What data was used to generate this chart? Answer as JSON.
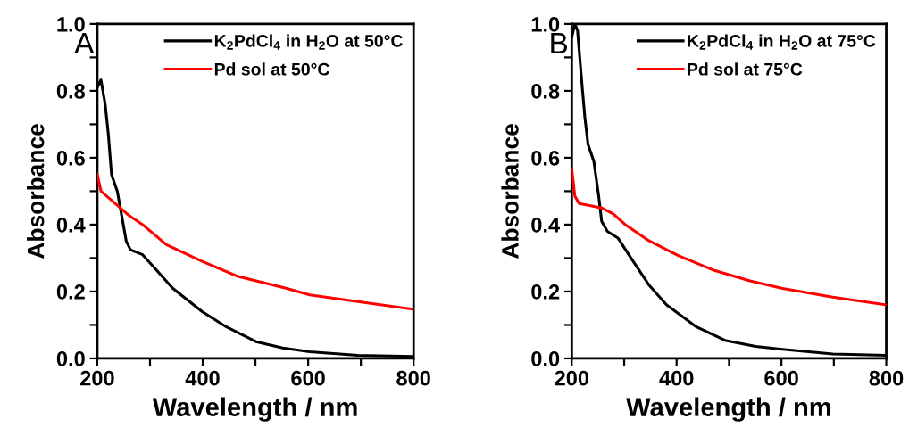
{
  "chart_data": [
    {
      "type": "line",
      "xlabel": "Wavelength / nm",
      "ylabel": "Absorbance",
      "annotations": [
        "A"
      ],
      "xlim": [
        200,
        800
      ],
      "ylim": [
        0,
        1.0
      ],
      "xticks": [
        200,
        {
          "value": 300,
          "label": null
        },
        400,
        {
          "value": 500,
          "label": null
        },
        600,
        {
          "value": 700,
          "label": null
        },
        800
      ],
      "yticks": [
        "0.0",
        {
          "value": 0.1,
          "label": null
        },
        0.2,
        {
          "value": 0.3,
          "label": null
        },
        0.4,
        {
          "value": 0.5,
          "label": null
        },
        0.6,
        {
          "value": 0.7,
          "label": null
        },
        0.8,
        {
          "value": 0.9,
          "label": null
        },
        "1.0"
      ],
      "grid": false,
      "legend": "top right",
      "marker": "none",
      "line_style": "solid",
      "series": [
        {
          "name": "K$_{2}$PdCl$_{4}$ in H$_{2}$O at 50°C",
          "color": "#000000",
          "x": [
            200,
            207,
            215,
            221,
            227,
            238,
            246,
            255,
            263,
            286,
            309,
            343,
            399,
            445,
            501,
            552,
            603,
            694,
            800
          ],
          "values": [
            0.81,
            0.833,
            0.76,
            0.67,
            0.55,
            0.5,
            0.43,
            0.35,
            0.325,
            0.31,
            0.27,
            0.21,
            0.14,
            0.094,
            0.05,
            0.031,
            0.02,
            0.009,
            0.006
          ]
        },
        {
          "name": "Pd sol at 50°C",
          "color": "#ff0000",
          "x": [
            200,
            207,
            229,
            258,
            286,
            331,
            399,
            467,
            558,
            603,
            694,
            800
          ],
          "values": [
            0.55,
            0.5,
            0.47,
            0.43,
            0.4,
            0.34,
            0.29,
            0.245,
            0.21,
            0.19,
            0.17,
            0.147
          ]
        }
      ]
    },
    {
      "type": "line",
      "xlabel": "Wavelength / nm",
      "ylabel": "Absorbance",
      "annotations": [
        "B"
      ],
      "xlim": [
        200,
        800
      ],
      "ylim": [
        0,
        1.0
      ],
      "xticks": [
        200,
        {
          "value": 300,
          "label": null
        },
        400,
        {
          "value": 500,
          "label": null
        },
        600,
        {
          "value": 700,
          "label": null
        },
        800
      ],
      "yticks": [
        "0.0",
        {
          "value": 0.1,
          "label": null
        },
        0.2,
        {
          "value": 0.3,
          "label": null
        },
        0.4,
        {
          "value": 0.5,
          "label": null
        },
        0.6,
        {
          "value": 0.7,
          "label": null
        },
        0.8,
        {
          "value": 0.9,
          "label": null
        },
        "1.0"
      ],
      "grid": false,
      "legend": "top right",
      "marker": "none",
      "line_style": "solid",
      "series": [
        {
          "name": "K$_{2}$PdCl$_{4}$ in H$_{2}$O at 75°C",
          "color": "#000000",
          "x": [
            200,
            206,
            211,
            220,
            225,
            231,
            242,
            251,
            257,
            268,
            288,
            313,
            347,
            381,
            438,
            494,
            551,
            602,
            698,
            800
          ],
          "values": [
            0.96,
            1.0,
            0.98,
            0.81,
            0.72,
            0.64,
            0.59,
            0.49,
            0.41,
            0.38,
            0.36,
            0.3,
            0.22,
            0.16,
            0.094,
            0.053,
            0.036,
            0.027,
            0.013,
            0.009
          ]
        },
        {
          "name": "Pd sol at 75°C",
          "color": "#ff0000",
          "x": [
            200,
            206,
            214,
            234,
            257,
            279,
            302,
            347,
            404,
            472,
            540,
            602,
            698,
            800
          ],
          "values": [
            0.566,
            0.485,
            0.463,
            0.457,
            0.45,
            0.432,
            0.4,
            0.352,
            0.307,
            0.263,
            0.232,
            0.209,
            0.183,
            0.16
          ]
        }
      ]
    }
  ]
}
